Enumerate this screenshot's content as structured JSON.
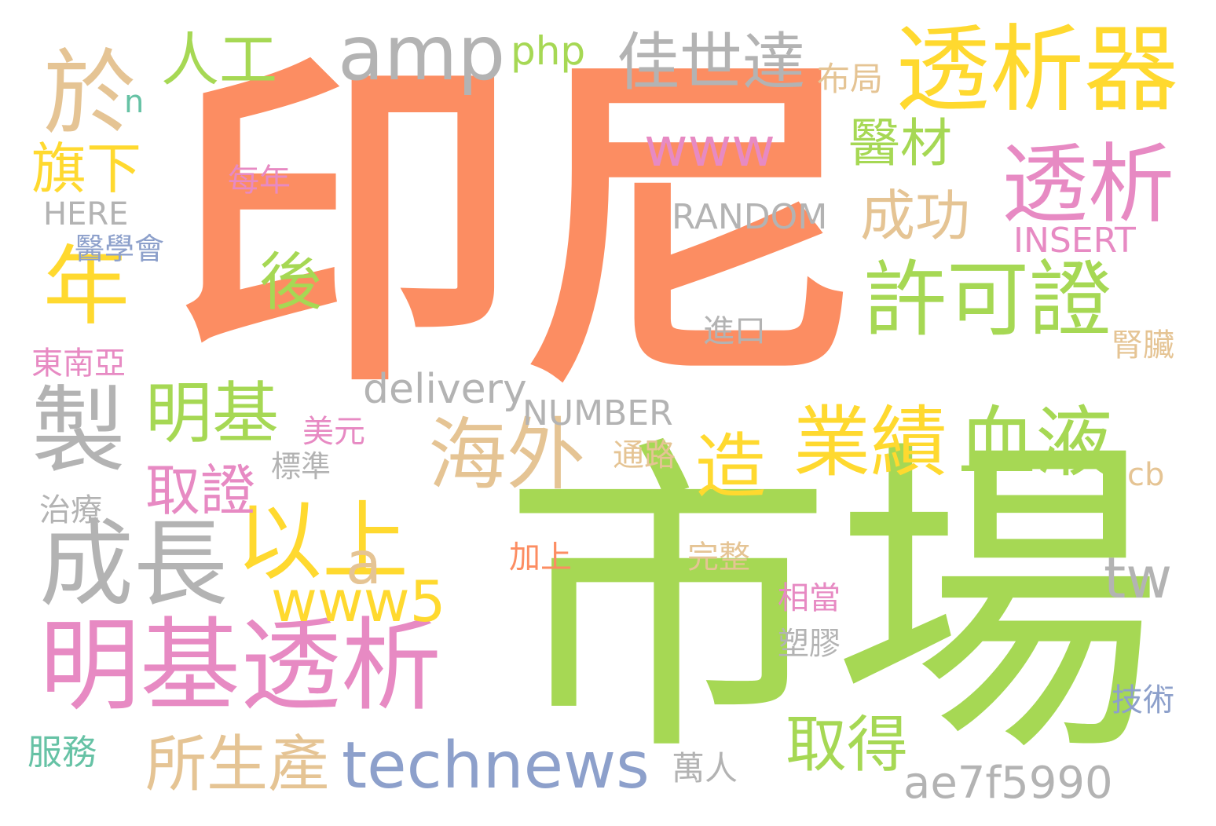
{
  "palette": {
    "orange": "#fc8d62",
    "green": "#a6d854",
    "yellow": "#ffd92f",
    "pink": "#e78ac3",
    "tan": "#e5c494",
    "gray": "#b3b3b3",
    "blue": "#8da0cb",
    "teal": "#66c2a5"
  },
  "words": [
    {
      "text": "印尼",
      "color": "orange",
      "weight": 100
    },
    {
      "text": "市場",
      "color": "green",
      "weight": 95
    },
    {
      "text": "透析器",
      "color": "yellow",
      "weight": 40
    },
    {
      "text": "透析",
      "color": "pink",
      "weight": 38
    },
    {
      "text": "許可證",
      "color": "green",
      "weight": 36
    },
    {
      "text": "明基透析",
      "color": "pink",
      "weight": 37
    },
    {
      "text": "成長",
      "color": "gray",
      "weight": 35
    },
    {
      "text": "以上",
      "color": "yellow",
      "weight": 33
    },
    {
      "text": "海外",
      "color": "tan",
      "weight": 32
    },
    {
      "text": "業績",
      "color": "yellow",
      "weight": 31
    },
    {
      "text": "血液",
      "color": "green",
      "weight": 31
    },
    {
      "text": "於",
      "color": "tan",
      "weight": 30
    },
    {
      "text": "年",
      "color": "yellow",
      "weight": 30
    },
    {
      "text": "製",
      "color": "gray",
      "weight": 30
    },
    {
      "text": "amp",
      "color": "gray",
      "weight": 28
    },
    {
      "text": "佳世達",
      "color": "gray",
      "weight": 26
    },
    {
      "text": "明基",
      "color": "green",
      "weight": 26
    },
    {
      "text": "造",
      "color": "yellow",
      "weight": 26
    },
    {
      "text": "technews",
      "color": "blue",
      "weight": 26
    },
    {
      "text": "所生產",
      "color": "tan",
      "weight": 25
    },
    {
      "text": "取得",
      "color": "green",
      "weight": 24
    },
    {
      "text": "成功",
      "color": "tan",
      "weight": 22
    },
    {
      "text": "醫材",
      "color": "green",
      "weight": 22
    },
    {
      "text": "後",
      "color": "green",
      "weight": 22
    },
    {
      "text": "人工",
      "color": "green",
      "weight": 21
    },
    {
      "text": "旗下",
      "color": "yellow",
      "weight": 21
    },
    {
      "text": "取證",
      "color": "pink",
      "weight": 21
    },
    {
      "text": "www5",
      "color": "yellow",
      "weight": 21
    },
    {
      "text": "www",
      "color": "pink",
      "weight": 20
    },
    {
      "text": "a",
      "color": "tan",
      "weight": 20
    },
    {
      "text": "tw",
      "color": "gray",
      "weight": 20
    },
    {
      "text": "ae7f5990",
      "color": "gray",
      "weight": 18
    },
    {
      "text": "delivery",
      "color": "gray",
      "weight": 18
    },
    {
      "text": "php",
      "color": "green",
      "weight": 16
    },
    {
      "text": "布局",
      "color": "tan",
      "weight": 15
    },
    {
      "text": "RANDOM",
      "color": "gray",
      "weight": 15
    },
    {
      "text": "INSERT",
      "color": "pink",
      "weight": 15
    },
    {
      "text": "NUMBER",
      "color": "gray",
      "weight": 15
    },
    {
      "text": "HERE",
      "color": "gray",
      "weight": 14
    },
    {
      "text": "服務",
      "color": "teal",
      "weight": 14
    },
    {
      "text": "萬人",
      "color": "gray",
      "weight": 14
    },
    {
      "text": "每年",
      "color": "pink",
      "weight": 13
    },
    {
      "text": "進口",
      "color": "gray",
      "weight": 13
    },
    {
      "text": "美元",
      "color": "pink",
      "weight": 13
    },
    {
      "text": "東南亞",
      "color": "pink",
      "weight": 13
    },
    {
      "text": "醫學會",
      "color": "blue",
      "weight": 13
    },
    {
      "text": "通路",
      "color": "tan",
      "weight": 13
    },
    {
      "text": "治療",
      "color": "gray",
      "weight": 13
    },
    {
      "text": "標準",
      "color": "gray",
      "weight": 12
    },
    {
      "text": "相當",
      "color": "pink",
      "weight": 12
    },
    {
      "text": "塑膠",
      "color": "gray",
      "weight": 12
    },
    {
      "text": "完整",
      "color": "tan",
      "weight": 12
    },
    {
      "text": "加上",
      "color": "orange",
      "weight": 12
    },
    {
      "text": "技術",
      "color": "blue",
      "weight": 12
    },
    {
      "text": "腎臟",
      "color": "tan",
      "weight": 12
    },
    {
      "text": "n",
      "color": "teal",
      "weight": 12
    },
    {
      "text": "cb",
      "color": "tan",
      "weight": 12
    }
  ]
}
